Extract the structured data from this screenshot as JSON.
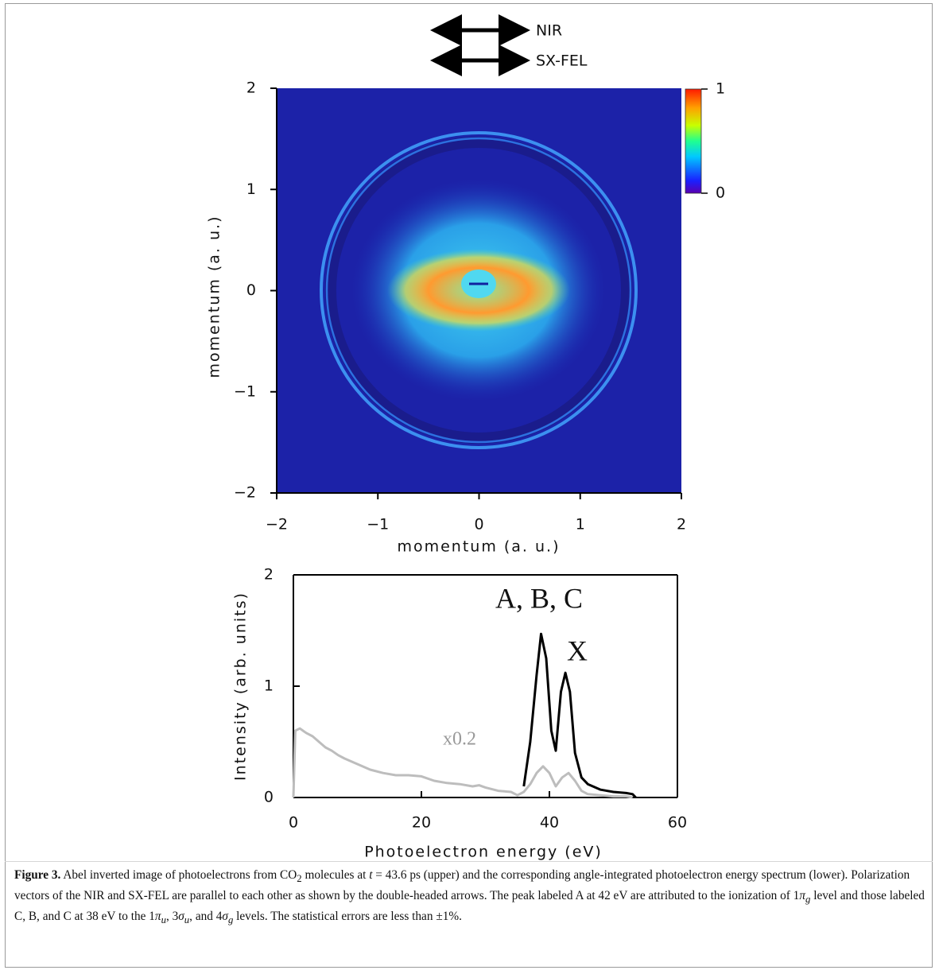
{
  "chart_data": [
    {
      "type": "image",
      "annotations": [
        "NIR",
        "SX-FEL"
      ],
      "x_label": "momentum (a. u.)",
      "y_label": "momentum (a. u.)",
      "xlim": [
        -2,
        2
      ],
      "ylim": [
        -2,
        2
      ],
      "xticks": [
        {
          "value": -2,
          "label": "−2"
        },
        {
          "value": -1,
          "label": "−1"
        },
        0,
        1,
        2
      ],
      "yticks": [
        {
          "value": -2,
          "label": "−2"
        },
        {
          "value": -1,
          "label": "−1"
        },
        0,
        1,
        2
      ],
      "colorbar_lim": [
        0,
        1
      ],
      "colorbar_ticks": [
        0,
        1
      ]
    },
    {
      "type": "line",
      "x_label": "Photoelectron energy (eV)",
      "y_label": "Intensity (arb. units)",
      "annotations": [
        "A, B, C",
        "X",
        "x0.2"
      ],
      "xlim": [
        0,
        60
      ],
      "ylim": [
        0,
        2
      ],
      "xticks": [
        0,
        20,
        40,
        60
      ],
      "yticks": [
        0,
        1,
        2
      ],
      "series": [
        {
          "color": "#bdbdbd",
          "x": [
            0,
            0.3,
            1,
            2,
            3,
            4,
            5,
            6,
            7,
            8,
            10,
            12,
            14,
            16,
            18,
            20,
            22,
            24,
            26,
            28,
            29,
            30,
            32,
            34,
            35,
            36,
            37,
            38,
            39,
            40,
            41,
            42,
            43,
            44,
            45,
            46,
            48,
            50,
            52,
            53
          ],
          "values": [
            0,
            0.6,
            0.62,
            0.58,
            0.55,
            0.5,
            0.45,
            0.42,
            0.38,
            0.35,
            0.3,
            0.25,
            0.22,
            0.2,
            0.2,
            0.19,
            0.15,
            0.13,
            0.12,
            0.1,
            0.11,
            0.09,
            0.06,
            0.05,
            0.02,
            0.05,
            0.12,
            0.22,
            0.28,
            0.22,
            0.1,
            0.18,
            0.22,
            0.15,
            0.06,
            0.03,
            0.02,
            0.01,
            0.01,
            0
          ]
        },
        {
          "color": "#000000",
          "x": [
            36,
            37,
            38,
            38.7,
            39.5,
            40.3,
            41,
            41.8,
            42.5,
            43.2,
            44,
            45,
            46,
            48,
            50,
            52,
            53,
            53.5
          ],
          "values": [
            0.1,
            0.5,
            1.1,
            1.47,
            1.25,
            0.6,
            0.42,
            0.95,
            1.12,
            0.95,
            0.4,
            0.18,
            0.12,
            0.07,
            0.05,
            0.04,
            0.03,
            0
          ]
        }
      ]
    }
  ],
  "caption": {
    "label": "Figure 3.",
    "parts": [
      " Abel inverted image of photoelectrons from CO",
      "2",
      " molecules at ",
      "t",
      " = 43.6 ps (upper) and the corresponding angle-integrated photoelectron energy spectrum (lower). Polarization vectors of the NIR and SX-FEL are parallel to each other as shown by the double-headed arrows. The peak labeled A at 42 eV are attributed to the ionization of 1",
      "π",
      "g",
      " level and those labeled C, B, and C at 38 eV to the 1",
      "π",
      "u",
      ", 3",
      "σ",
      "u",
      ", and 4",
      "σ",
      "g",
      " levels. The statistical errors are less than ±1%."
    ]
  }
}
